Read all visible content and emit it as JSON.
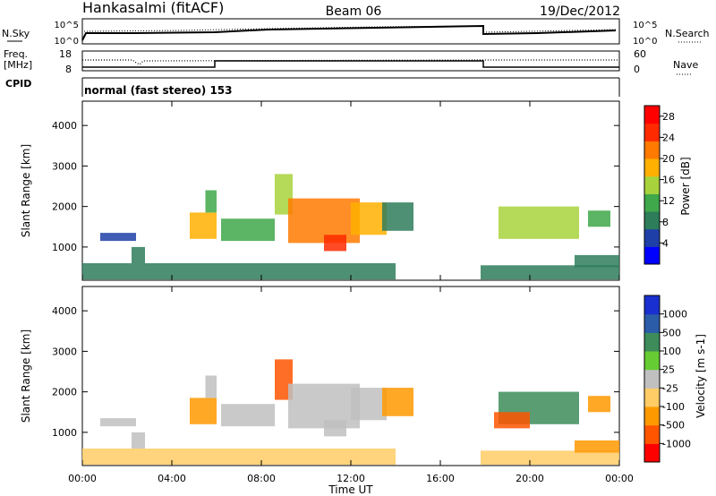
{
  "header": {
    "station": "Hankasalmi (fitACF)",
    "beam": "Beam 06",
    "date": "19/Dec/2012"
  },
  "top_panels": {
    "nsky_label": "N.Sky",
    "nsearch_label": "N.Search",
    "nsky_ticks": [
      "10^5",
      "10^0"
    ],
    "nsearch_ticks": [
      "10^5",
      "10^0"
    ],
    "freq_label_1": "Freq.",
    "freq_label_2": "[MHz]",
    "freq_ticks": [
      "18",
      "8"
    ],
    "nave_label": "Nave",
    "nave_ticks": [
      "60",
      "0"
    ],
    "cpid_label": "CPID",
    "cpid_text": "normal (fast stereo) 153"
  },
  "colors": {
    "power_scale": [
      "#0000ff",
      "#1f3fa8",
      "#2e7d5a",
      "#3fa84a",
      "#a8d23c",
      "#ffb000",
      "#ff7a00",
      "#ff2a00",
      "#ff0000"
    ],
    "velocity_scale": [
      "#ff0000",
      "#ff5500",
      "#ff9900",
      "#ffcc66",
      "#c0c0c0",
      "#66cc33",
      "#3d8c5a",
      "#2a5ca8",
      "#1a2fd0"
    ]
  },
  "chart_data": [
    {
      "type": "heatmap",
      "name": "power",
      "xlabel": "",
      "ylabel": "Slant Range [km]",
      "x_ticks": [
        "00:00",
        "04:00",
        "08:00",
        "12:00",
        "16:00",
        "20:00",
        "00:00"
      ],
      "xlim_hours": [
        0,
        24
      ],
      "y_ticks": [
        1000,
        2000,
        3000,
        4000
      ],
      "ylim_km": [
        180,
        4600
      ],
      "colorbar_label": "Power [dB]",
      "colorbar_ticks": [
        4,
        8,
        12,
        16,
        20,
        24,
        28
      ],
      "colorbar_range": [
        0,
        30
      ],
      "regions": [
        {
          "t0": 0.0,
          "t1": 14.0,
          "r0": 200,
          "r1": 600,
          "v": 7
        },
        {
          "t0": 17.8,
          "t1": 24.0,
          "r0": 200,
          "r1": 550,
          "v": 7
        },
        {
          "t0": 0.8,
          "t1": 2.4,
          "r0": 1150,
          "r1": 1350,
          "v": 6
        },
        {
          "t0": 2.2,
          "t1": 2.8,
          "r0": 600,
          "r1": 1000,
          "v": 9
        },
        {
          "t0": 4.8,
          "t1": 6.0,
          "r0": 1200,
          "r1": 1850,
          "v": 19
        },
        {
          "t0": 5.5,
          "t1": 6.0,
          "r0": 1850,
          "r1": 2400,
          "v": 12
        },
        {
          "t0": 6.2,
          "t1": 8.6,
          "r0": 1150,
          "r1": 1700,
          "v": 10
        },
        {
          "t0": 8.6,
          "t1": 9.4,
          "r0": 1800,
          "r1": 2800,
          "v": 16
        },
        {
          "t0": 9.2,
          "t1": 12.4,
          "r0": 1100,
          "r1": 2200,
          "v": 20
        },
        {
          "t0": 10.8,
          "t1": 11.8,
          "r0": 900,
          "r1": 1300,
          "v": 26
        },
        {
          "t0": 12.0,
          "t1": 13.6,
          "r0": 1300,
          "r1": 2100,
          "v": 18
        },
        {
          "t0": 13.4,
          "t1": 14.8,
          "r0": 1400,
          "r1": 2100,
          "v": 9
        },
        {
          "t0": 18.6,
          "t1": 22.2,
          "r0": 1200,
          "r1": 2000,
          "v": 15
        },
        {
          "t0": 22.6,
          "t1": 23.6,
          "r0": 1500,
          "r1": 1900,
          "v": 11
        },
        {
          "t0": 22.0,
          "t1": 24.0,
          "r0": 500,
          "r1": 800,
          "v": 9
        }
      ]
    },
    {
      "type": "heatmap",
      "name": "velocity",
      "xlabel": "Time UT",
      "ylabel": "Slant Range [km]",
      "x_ticks": [
        "00:00",
        "04:00",
        "08:00",
        "12:00",
        "16:00",
        "20:00",
        "00:00"
      ],
      "xlim_hours": [
        0,
        24
      ],
      "y_ticks": [
        1000,
        2000,
        3000,
        4000
      ],
      "ylim_km": [
        180,
        4600
      ],
      "colorbar_label": "Velocity [m s-1]",
      "colorbar_ticks": [
        "-1000",
        "-500",
        "-100",
        "-25",
        "25",
        "100",
        "500",
        "1000"
      ],
      "regions": [
        {
          "t0": 0.0,
          "t1": 14.0,
          "r0": 200,
          "r1": 600,
          "v": 3
        },
        {
          "t0": 17.8,
          "t1": 24.0,
          "r0": 200,
          "r1": 550,
          "v": 3
        },
        {
          "t0": 0.8,
          "t1": 2.4,
          "r0": 1150,
          "r1": 1350,
          "v": 4
        },
        {
          "t0": 2.2,
          "t1": 2.8,
          "r0": 600,
          "r1": 1000,
          "v": 4
        },
        {
          "t0": 4.8,
          "t1": 6.0,
          "r0": 1200,
          "r1": 1850,
          "v": 2
        },
        {
          "t0": 5.5,
          "t1": 6.0,
          "r0": 1850,
          "r1": 2400,
          "v": 4
        },
        {
          "t0": 6.2,
          "t1": 8.6,
          "r0": 1150,
          "r1": 1700,
          "v": 4
        },
        {
          "t0": 8.6,
          "t1": 9.4,
          "r0": 1800,
          "r1": 2800,
          "v": 1
        },
        {
          "t0": 9.2,
          "t1": 12.4,
          "r0": 1100,
          "r1": 2200,
          "v": 4
        },
        {
          "t0": 10.8,
          "t1": 11.8,
          "r0": 900,
          "r1": 1300,
          "v": 4
        },
        {
          "t0": 12.0,
          "t1": 13.6,
          "r0": 1300,
          "r1": 2100,
          "v": 4
        },
        {
          "t0": 13.4,
          "t1": 14.8,
          "r0": 1400,
          "r1": 2100,
          "v": 2
        },
        {
          "t0": 18.6,
          "t1": 22.2,
          "r0": 1200,
          "r1": 2000,
          "v": 6
        },
        {
          "t0": 18.4,
          "t1": 20.0,
          "r0": 1100,
          "r1": 1500,
          "v": 1
        },
        {
          "t0": 22.6,
          "t1": 23.6,
          "r0": 1500,
          "r1": 1900,
          "v": 2
        },
        {
          "t0": 22.0,
          "t1": 24.0,
          "r0": 500,
          "r1": 800,
          "v": 2
        }
      ]
    }
  ]
}
